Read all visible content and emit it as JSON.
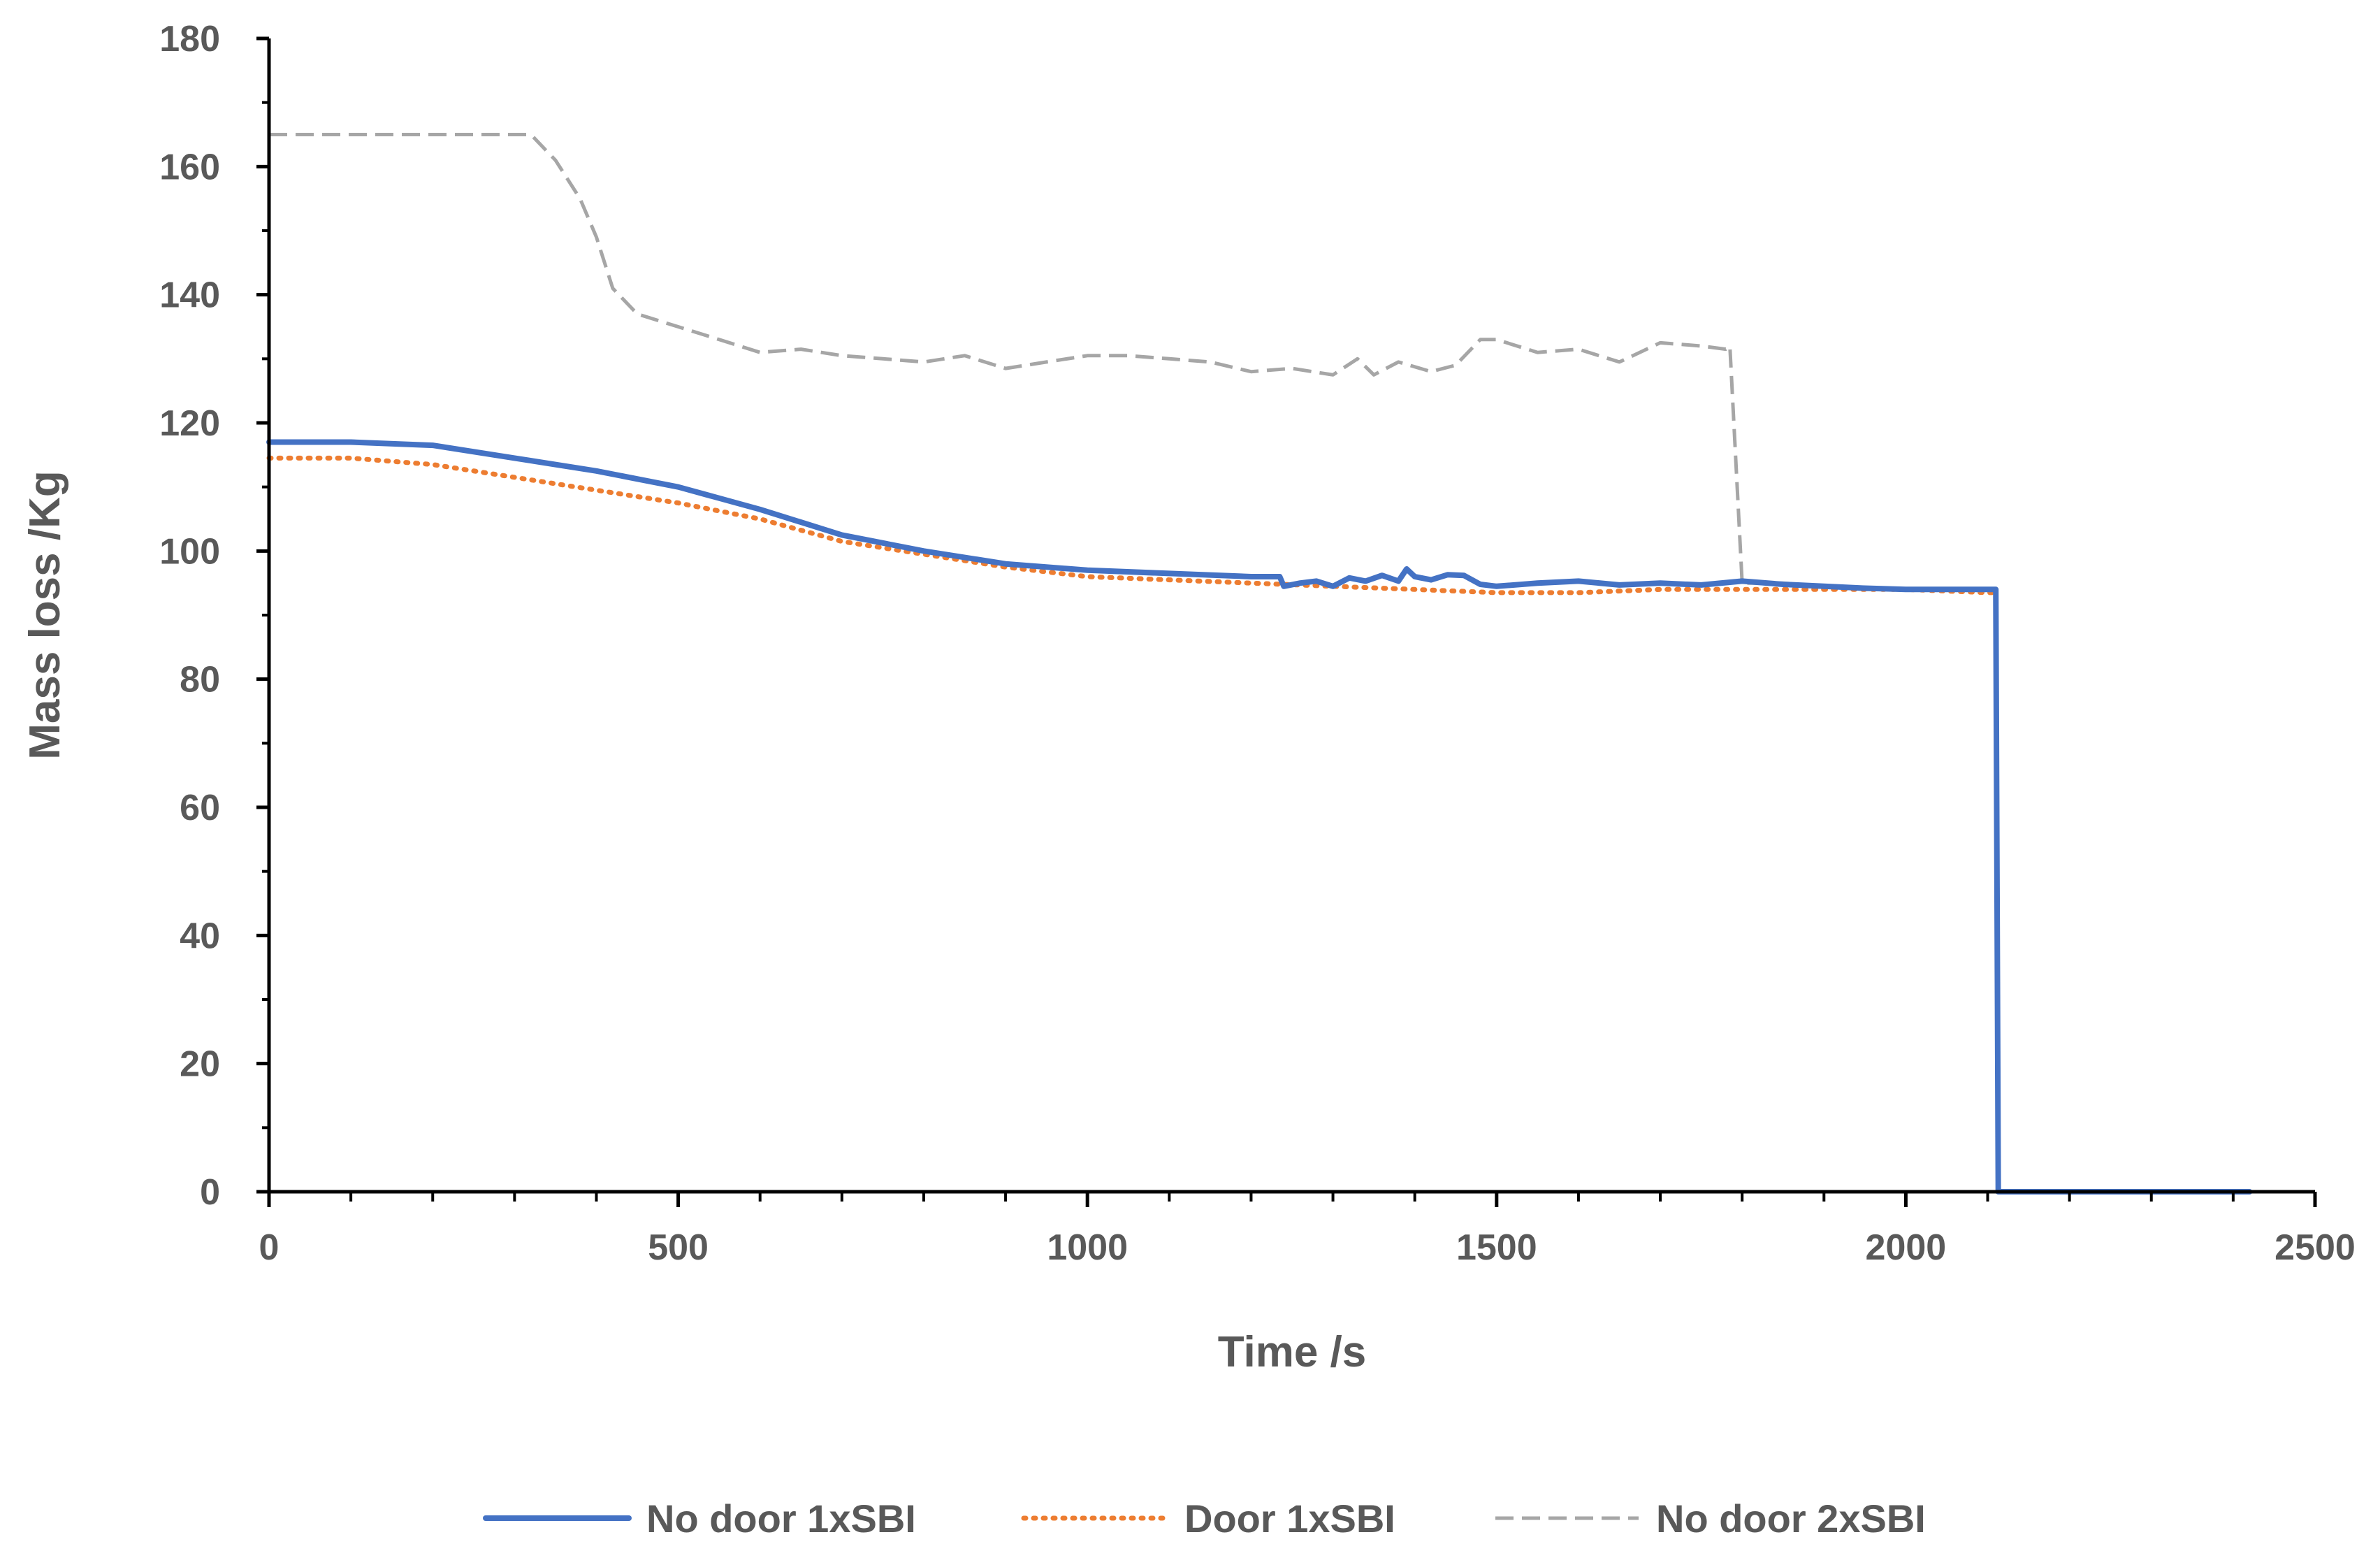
{
  "chart_data": {
    "type": "line",
    "title": "",
    "xlabel": "Time /s",
    "ylabel": "Mass loss /Kg",
    "xlim": [
      0,
      2500
    ],
    "ylim": [
      0,
      180
    ],
    "xticks": [
      0,
      500,
      1000,
      1500,
      2000,
      2500
    ],
    "yticks": [
      0,
      20,
      40,
      60,
      80,
      100,
      120,
      140,
      160,
      180
    ],
    "grid": false,
    "legend_position": "bottom",
    "series": [
      {
        "name": "No door 1xSBI",
        "color": "#4472C4",
        "style": "solid",
        "x": [
          0,
          100,
          200,
          300,
          400,
          500,
          600,
          700,
          800,
          900,
          1000,
          1100,
          1200,
          1235,
          1240,
          1260,
          1280,
          1300,
          1320,
          1340,
          1360,
          1380,
          1390,
          1400,
          1420,
          1440,
          1460,
          1480,
          1500,
          1550,
          1600,
          1650,
          1700,
          1750,
          1800,
          1850,
          1900,
          1950,
          2000,
          2050,
          2100,
          2110,
          2113,
          2120,
          2200,
          2300,
          2400,
          2420
        ],
        "y": [
          117,
          117,
          116.5,
          114.5,
          112.5,
          110,
          106.5,
          102.5,
          100,
          98,
          97,
          96.5,
          96,
          96,
          94.5,
          95,
          95.3,
          94.5,
          95.8,
          95.3,
          96.2,
          95.3,
          97.2,
          96,
          95.5,
          96.3,
          96.2,
          94.8,
          94.5,
          95,
          95.3,
          94.7,
          95,
          94.7,
          95.3,
          94.8,
          94.5,
          94.2,
          94,
          94,
          94,
          94,
          0,
          0,
          0,
          0,
          0,
          0
        ]
      },
      {
        "name": "Door 1xSBI",
        "color": "#ED7D31",
        "style": "dotted",
        "x": [
          0,
          100,
          200,
          300,
          400,
          500,
          600,
          700,
          800,
          900,
          1000,
          1100,
          1200,
          1300,
          1400,
          1500,
          1600,
          1700,
          1800,
          1900,
          2000,
          2100,
          2110,
          2113,
          2120,
          2200,
          2300,
          2400,
          2420
        ],
        "y": [
          114.5,
          114.5,
          113.5,
          111.5,
          109.5,
          107.5,
          105,
          101.5,
          99.5,
          97.5,
          96,
          95.5,
          95,
          94.5,
          94,
          93.5,
          93.5,
          94,
          94,
          94,
          94,
          93.5,
          93.5,
          0,
          0,
          0,
          0,
          0,
          0
        ]
      },
      {
        "name": "No door 2xSBI",
        "color": "#A6A6A6",
        "style": "dashed",
        "x": [
          0,
          100,
          200,
          300,
          320,
          350,
          380,
          400,
          420,
          450,
          500,
          550,
          600,
          650,
          700,
          750,
          800,
          850,
          900,
          950,
          1000,
          1050,
          1100,
          1150,
          1200,
          1250,
          1300,
          1330,
          1350,
          1380,
          1420,
          1450,
          1480,
          1500,
          1550,
          1600,
          1650,
          1700,
          1750,
          1780,
          1785,
          1800,
          1850,
          1900,
          1950,
          2000,
          2050,
          2100,
          2110,
          2113,
          2120,
          2200,
          2300,
          2400,
          2420
        ],
        "y": [
          165,
          165,
          165,
          165,
          165,
          161,
          155,
          149,
          141,
          137,
          135,
          133,
          131,
          131.5,
          130.5,
          130,
          129.5,
          130.5,
          128.5,
          129.5,
          130.5,
          130.5,
          130,
          129.5,
          128,
          128.5,
          127.5,
          130,
          127.5,
          129.5,
          128,
          129,
          133,
          133,
          131,
          131.5,
          129.5,
          132.5,
          132,
          131.5,
          132,
          95,
          95,
          94.5,
          94,
          94,
          94,
          94,
          94,
          0,
          0,
          0,
          0,
          0,
          0
        ]
      }
    ]
  }
}
